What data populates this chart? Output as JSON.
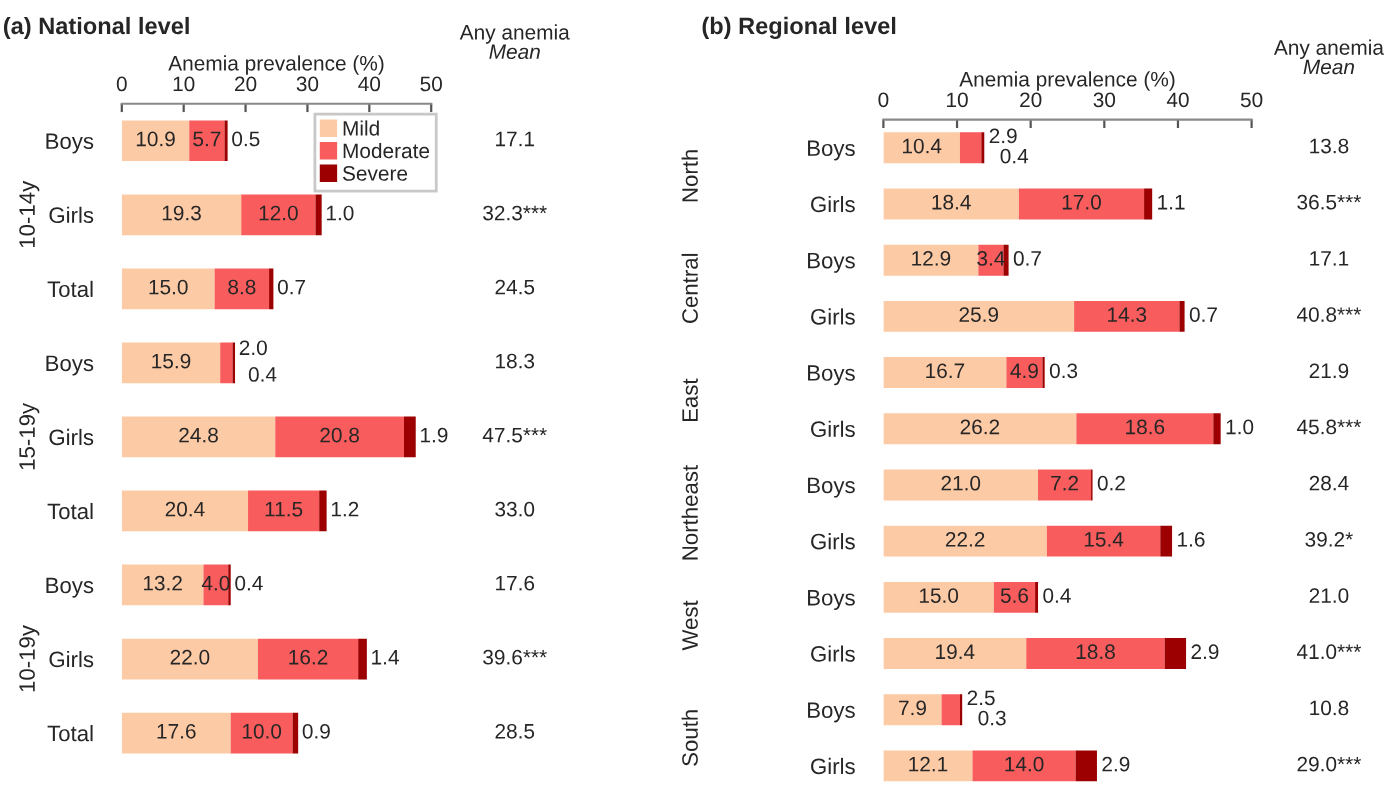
{
  "chart_data": [
    {
      "type": "bar",
      "orientation": "horizontal",
      "stacked": true,
      "title": "(a) National level",
      "xlabel": "Anemia prevalence (%)",
      "categories": [
        "Boys",
        "Girls",
        "Total",
        "Boys",
        "Girls",
        "Total",
        "Boys",
        "Girls",
        "Total"
      ],
      "series": [
        {
          "name": "Mild",
          "color": "#fdcaa6",
          "values": [
            10.9,
            19.3,
            15.0,
            15.9,
            24.8,
            20.4,
            13.2,
            22.0,
            17.6
          ],
          "value_labels": [
            "10.9",
            "19.3",
            "15.0",
            "15.9",
            "24.8",
            "20.4",
            "13.2",
            "22.0",
            "17.6"
          ]
        },
        {
          "name": "Moderate",
          "color": "#f95c5c",
          "values": [
            5.7,
            12.0,
            8.8,
            2.0,
            20.8,
            11.5,
            4.0,
            16.2,
            10.0
          ],
          "value_labels": [
            "5.7",
            "12.0",
            "8.8",
            "2.0",
            "20.8",
            "11.5",
            "4.0",
            "16.2",
            "10.0"
          ]
        },
        {
          "name": "Severe",
          "color": "#9c0000",
          "values": [
            0.5,
            1.0,
            0.7,
            0.4,
            1.9,
            1.2,
            0.4,
            1.4,
            0.9
          ],
          "value_labels": [
            "0.5",
            "1.0",
            "0.7",
            "0.4",
            "1.9",
            "1.2",
            "0.4",
            "1.4",
            "0.9"
          ]
        }
      ],
      "annotations": [
        "Any anemia",
        "Mean",
        "10-14y",
        "15-19y",
        "10-19y",
        "17.1",
        "32.3***",
        "24.5",
        "18.3",
        "47.5***",
        "33.0",
        "17.6",
        "39.6***",
        "28.5"
      ],
      "xlim": [
        0,
        50
      ],
      "xticks": [
        0,
        10,
        20,
        30,
        40,
        50
      ],
      "legend": "top right",
      "grid": false
    },
    {
      "type": "bar",
      "orientation": "horizontal",
      "stacked": true,
      "title": "(b) Regional level",
      "xlabel": "Anemia prevalence (%)",
      "categories": [
        "Boys",
        "Girls",
        "Boys",
        "Girls",
        "Boys",
        "Girls",
        "Boys",
        "Girls",
        "Boys",
        "Girls",
        "Boys",
        "Girls"
      ],
      "series": [
        {
          "color": "#fdcaa6",
          "values": [
            10.4,
            18.4,
            12.9,
            25.9,
            16.7,
            26.2,
            21.0,
            22.2,
            15.0,
            19.4,
            7.9,
            12.1
          ],
          "value_labels": [
            "10.4",
            "18.4",
            "12.9",
            "25.9",
            "16.7",
            "26.2",
            "21.0",
            "22.2",
            "15.0",
            "19.4",
            "7.9",
            "12.1"
          ]
        },
        {
          "color": "#f95c5c",
          "values": [
            2.9,
            17.0,
            3.4,
            14.3,
            4.9,
            18.6,
            7.2,
            15.4,
            5.6,
            18.8,
            2.5,
            14.0
          ],
          "value_labels": [
            "2.9",
            "17.0",
            "3.4",
            "14.3",
            "4.9",
            "18.6",
            "7.2",
            "15.4",
            "5.6",
            "18.8",
            "2.5",
            "14.0"
          ]
        },
        {
          "color": "#9c0000",
          "values": [
            0.4,
            1.1,
            0.7,
            0.7,
            0.3,
            1.0,
            0.2,
            1.6,
            0.4,
            2.9,
            0.3,
            2.9
          ],
          "value_labels": [
            "0.4",
            "1.1",
            "0.7",
            "0.7",
            "0.3",
            "1.0",
            "0.2",
            "1.6",
            "0.4",
            "2.9",
            "0.3",
            "2.9"
          ]
        }
      ],
      "annotations": [
        "Any anemia",
        "Mean",
        "North",
        "Central",
        "East",
        "Northeast",
        "West",
        "South",
        "13.8",
        "36.5***",
        "17.1",
        "40.8***",
        "21.9",
        "45.8***",
        "28.4",
        "39.2*",
        "21.0",
        "41.0***",
        "10.8",
        "29.0***"
      ],
      "xlim": [
        0,
        50
      ],
      "xticks": [
        0,
        10,
        20,
        30,
        40,
        50
      ],
      "legend": false,
      "grid": false
    }
  ]
}
